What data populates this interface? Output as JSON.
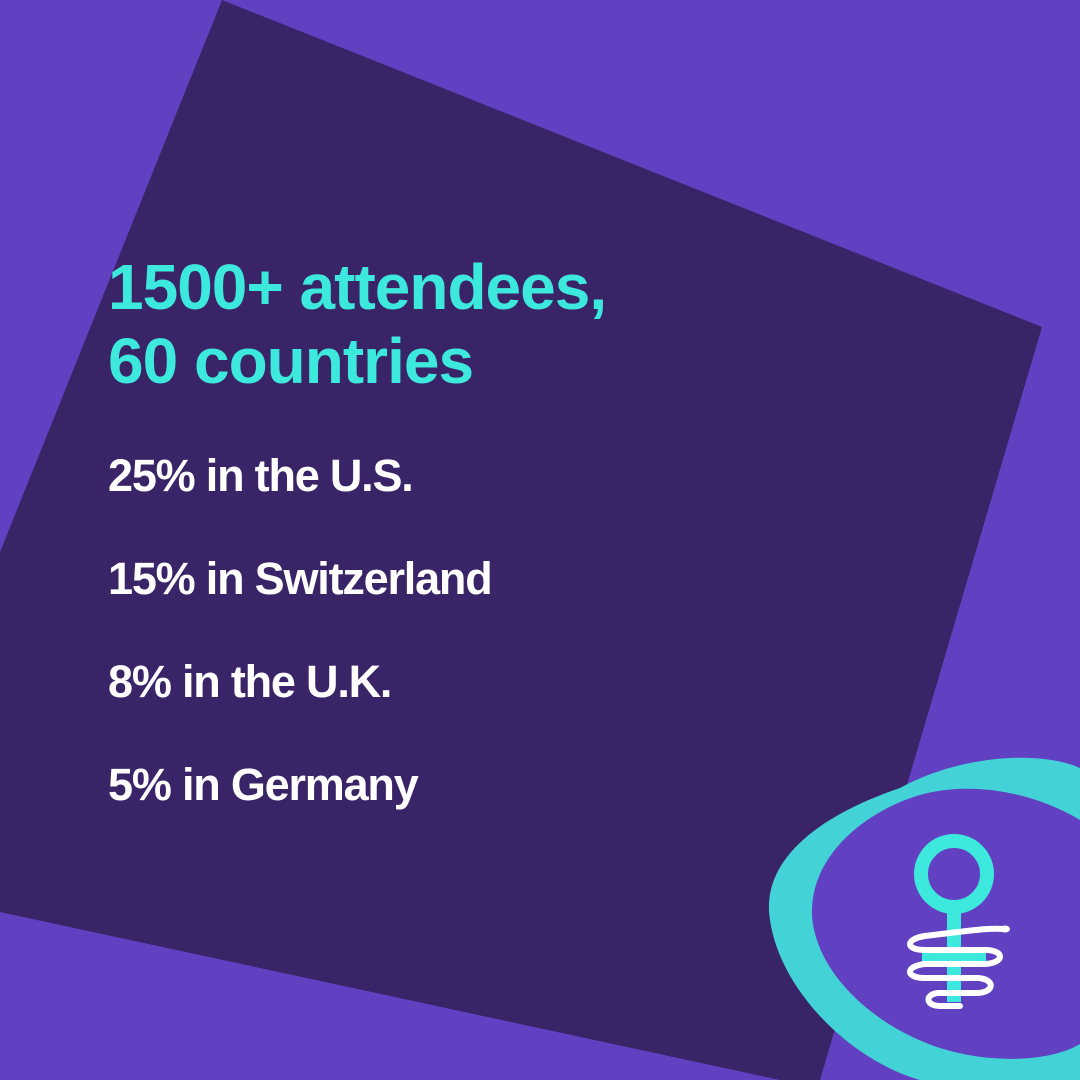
{
  "colors": {
    "background": "#6141C1",
    "panel": "#3A2468",
    "accent": "#3DE8DC",
    "text": "#FFFFFF",
    "blob": "#43D2D6"
  },
  "headline": {
    "line1": "1500+ attendees,",
    "line2": "60 countries"
  },
  "stats": [
    {
      "label": "25% in the U.S."
    },
    {
      "label": "15% in Switzerland"
    },
    {
      "label": "8% in the U.K."
    },
    {
      "label": "5% in Germany"
    }
  ],
  "logo": {
    "icon": "venus-symbol-snake-icon"
  }
}
